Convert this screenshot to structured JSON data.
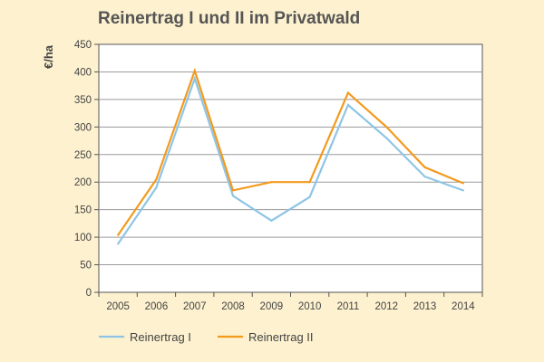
{
  "chart_data": {
    "type": "line",
    "title": "Reinertrag I und II im Privatwald",
    "xlabel": "",
    "ylabel": "€/ha",
    "categories": [
      "2005",
      "2006",
      "2007",
      "2008",
      "2009",
      "2010",
      "2011",
      "2012",
      "2013",
      "2014"
    ],
    "ylim": [
      0,
      450
    ],
    "yticks": [
      0,
      50,
      100,
      150,
      200,
      250,
      300,
      350,
      400,
      450
    ],
    "grid": true,
    "legend_position": "bottom-left",
    "series": [
      {
        "name": "Reinertrag I",
        "color": "#8ec5e6",
        "values": [
          88,
          190,
          388,
          175,
          130,
          173,
          340,
          280,
          210,
          185
        ]
      },
      {
        "name": "Reinertrag II",
        "color": "#f39a1d",
        "values": [
          104,
          205,
          402,
          185,
          200,
          200,
          362,
          300,
          227,
          198
        ]
      }
    ]
  }
}
